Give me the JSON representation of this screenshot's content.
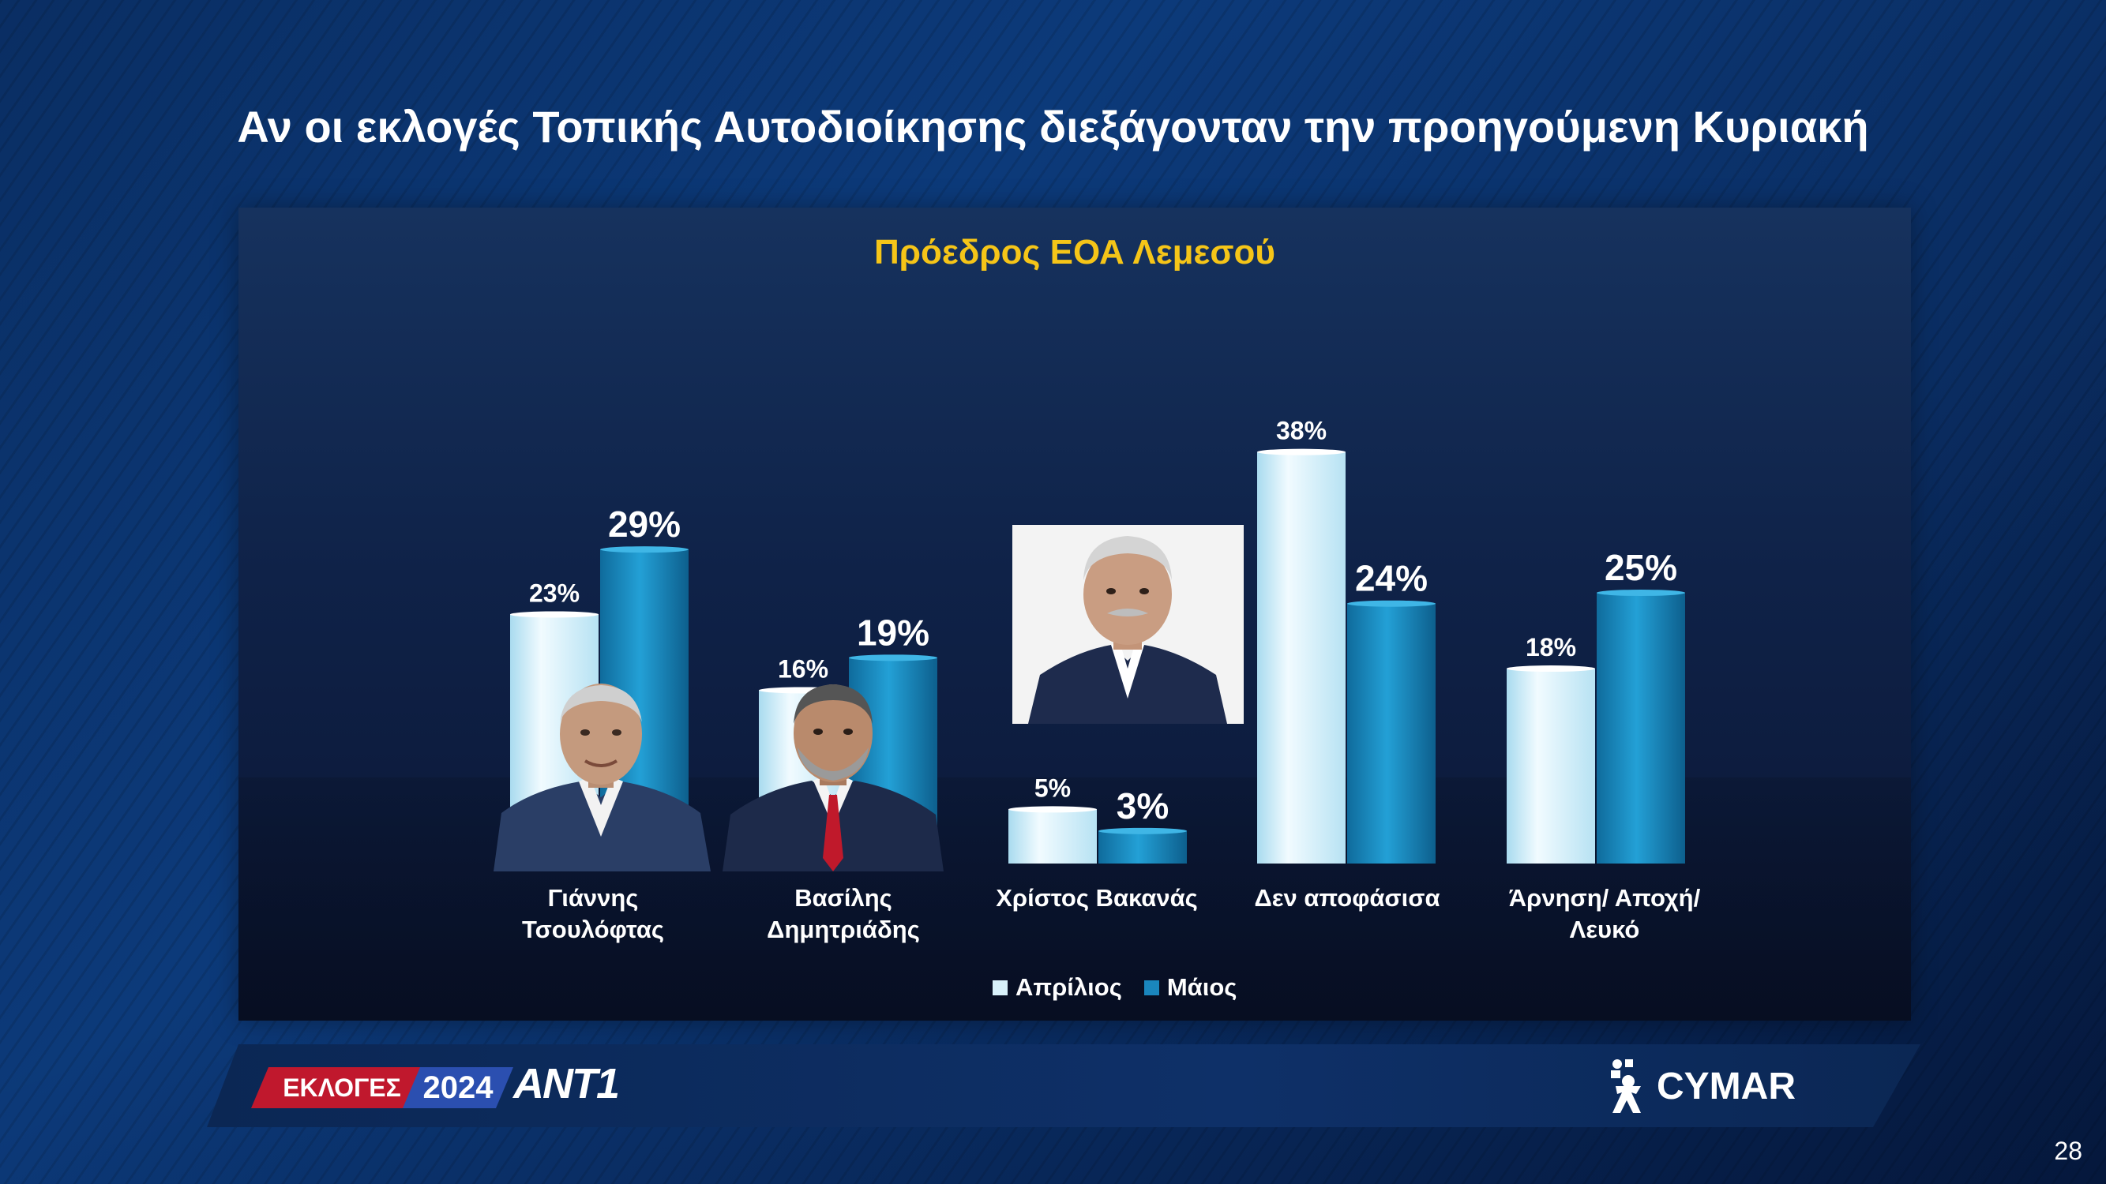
{
  "title": "Αν οι εκλογές Τοπικής Αυτοδιοίκησης διεξάγονταν την προηγούμενη Κυριακή",
  "chart_data": {
    "type": "bar",
    "title": "Πρόεδρος ΕΟΑ Λεμεσού",
    "categories": [
      "Γιάννης Τσουλόφτας",
      "Βασίλης Δημητριάδης",
      "Χρίστος Βακανάς",
      "Δεν αποφάσισα",
      "Άρνηση/ Αποχή/ Λευκό"
    ],
    "category_lines": [
      [
        "Γιάννης",
        "Τσουλόφτας"
      ],
      [
        "Βασίλης",
        "Δημητριάδης"
      ],
      [
        "Χρίστος Βακανάς"
      ],
      [
        "Δεν αποφάσισα"
      ],
      [
        "Άρνηση/ Αποχή/",
        "Λευκό"
      ]
    ],
    "series": [
      {
        "name": "Απρίλιος",
        "values": [
          23,
          16,
          5,
          38,
          18
        ],
        "labels": [
          "23%",
          "16%",
          "5%",
          "38%",
          "18%"
        ],
        "color": "#d8f1fa"
      },
      {
        "name": "Μάιος",
        "values": [
          29,
          19,
          3,
          24,
          25
        ],
        "labels": [
          "29%",
          "19%",
          "3%",
          "24%",
          "25%"
        ],
        "color": "#1a86bd"
      }
    ],
    "legend_position": "bottom",
    "grid": false
  },
  "footer": {
    "badge_red": "ΕΚΛΟΓΕΣ",
    "badge_year": "2024",
    "channel": "ANT1",
    "pollster": "CYMAR",
    "page_number": "28"
  }
}
